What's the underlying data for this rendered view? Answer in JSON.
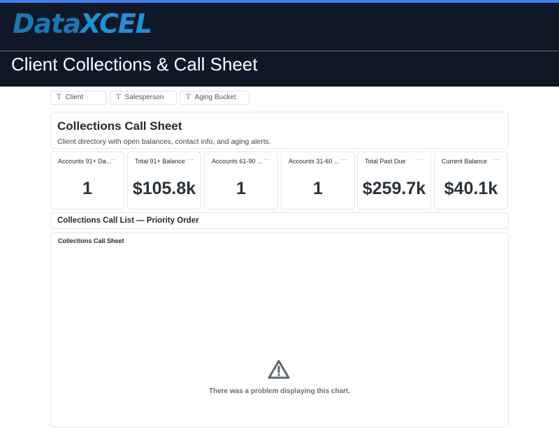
{
  "header": {
    "logo_part1": "Data",
    "logo_part2": "XCEL",
    "title": "Client Collections & Call Sheet",
    "accent": "#3b82f6",
    "background": "#101828"
  },
  "filters": [
    {
      "label": "Client",
      "icon": "text-type-icon"
    },
    {
      "label": "Salesperson",
      "icon": "text-type-icon"
    },
    {
      "label": "Aging Bucket",
      "icon": "text-type-icon"
    }
  ],
  "filter_icon_glyph": "T",
  "intro": {
    "title": "Collections Call Sheet",
    "description": "Client directory with open balances, contact info, and aging alerts."
  },
  "kpis": [
    {
      "label": "Accounts 91+ Da...",
      "value": "1"
    },
    {
      "label": "Total 91+ Balance",
      "value": "$105.8k"
    },
    {
      "label": "Accounts 61-90 ...",
      "value": "1"
    },
    {
      "label": "Accounts 31-60 ...",
      "value": "1"
    },
    {
      "label": "Total Past Due",
      "value": "$259.7k"
    },
    {
      "label": "Current Balance",
      "value": "$40.1k"
    }
  ],
  "kpi_menu": "···",
  "section": {
    "title": "Collections Call List — Priority Order"
  },
  "chart": {
    "title": "Collections Call Sheet",
    "error": "There was a problem displaying this chart."
  }
}
